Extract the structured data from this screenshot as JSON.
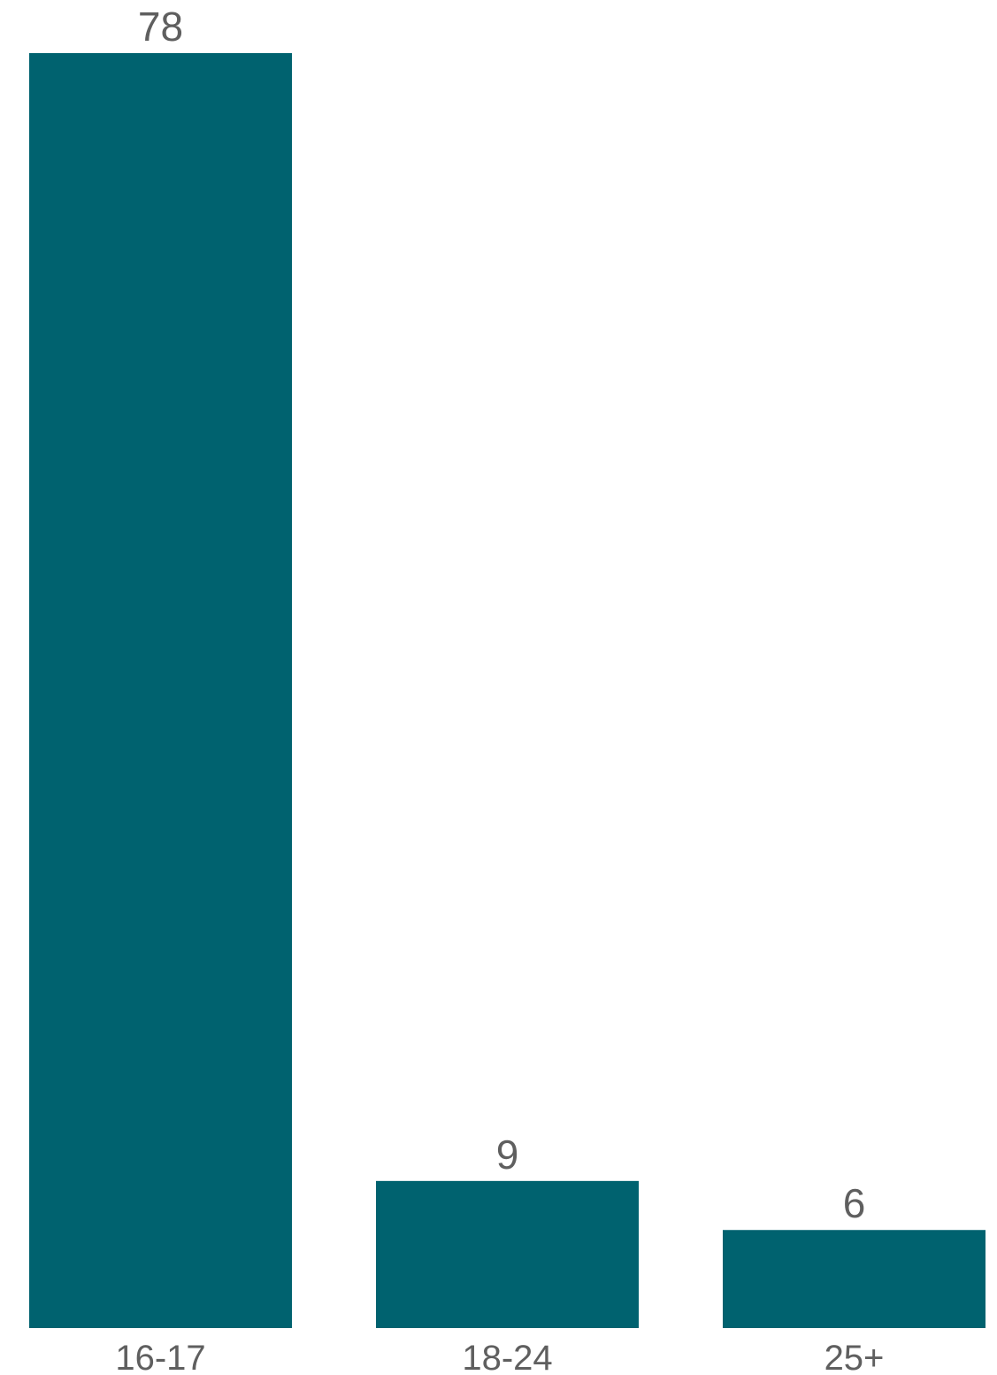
{
  "chart_data": {
    "type": "bar",
    "categories": [
      "16-17",
      "18-24",
      "25+"
    ],
    "values": [
      78,
      9,
      6
    ],
    "data_labels": [
      "78",
      "9",
      "6"
    ],
    "title": "",
    "xlabel": "",
    "ylabel": "",
    "ylim": [
      0,
      78
    ],
    "grid": false,
    "legend": "none",
    "colors": {
      "bar": "#00626f",
      "label": "#5f5f5f"
    }
  }
}
